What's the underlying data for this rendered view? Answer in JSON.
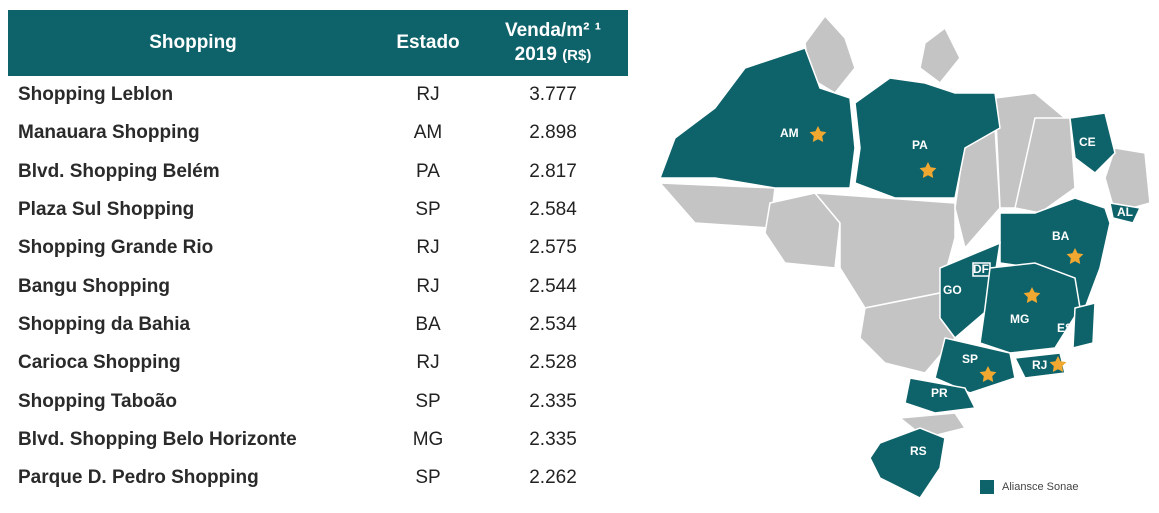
{
  "table": {
    "headers": {
      "shopping": "Shopping",
      "estado": "Estado",
      "venda_line1": "Venda/m² ¹",
      "venda_line2": "2019",
      "venda_unit": "(R$)"
    },
    "rows": [
      {
        "name": "Shopping Leblon",
        "state": "RJ",
        "value": "3.777"
      },
      {
        "name": "Manauara Shopping",
        "state": "AM",
        "value": "2.898"
      },
      {
        "name": "Blvd. Shopping Belém",
        "state": "PA",
        "value": "2.817"
      },
      {
        "name": "Plaza Sul Shopping",
        "state": "SP",
        "value": "2.584"
      },
      {
        "name": "Shopping Grande Rio",
        "state": "RJ",
        "value": "2.575"
      },
      {
        "name": "Bangu Shopping",
        "state": "RJ",
        "value": "2.544"
      },
      {
        "name": "Shopping da Bahia",
        "state": "BA",
        "value": "2.534"
      },
      {
        "name": "Carioca Shopping",
        "state": "RJ",
        "value": "2.528"
      },
      {
        "name": "Shopping Taboão",
        "state": "SP",
        "value": "2.335"
      },
      {
        "name": "Blvd. Shopping Belo Horizonte",
        "state": "MG",
        "value": "2.335"
      },
      {
        "name": "Parque D. Pedro Shopping",
        "state": "SP",
        "value": "2.262"
      }
    ]
  },
  "map": {
    "labels": {
      "am": "AM",
      "pa": "PA",
      "ce": "CE",
      "al": "AL",
      "ba": "BA",
      "df": "DF",
      "go": "GO",
      "mg": "MG",
      "es": "ES",
      "sp": "SP",
      "rj": "RJ",
      "pr": "PR",
      "rs": "RS"
    },
    "highlight_color": "#0e626a",
    "other_color": "#c4c4c4",
    "star_color": "#f0a830"
  },
  "legend": {
    "label": "Aliansce Sonae"
  }
}
